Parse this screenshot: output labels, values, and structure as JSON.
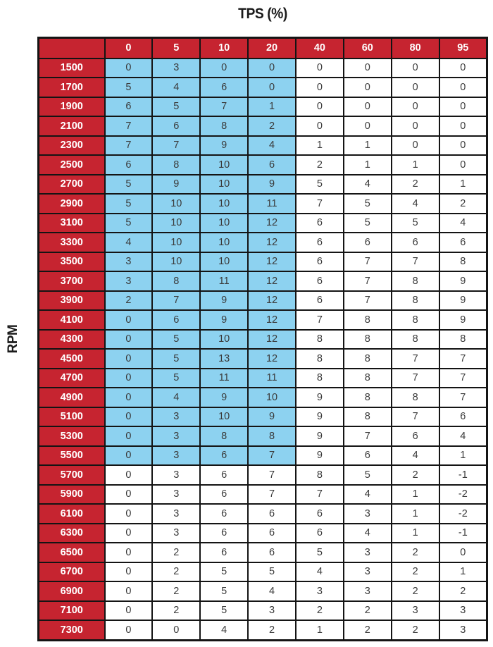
{
  "title": "TPS (%)",
  "y_axis_label": "RPM",
  "colors": {
    "header_red": "#C62430",
    "highlight_blue": "#8DD2F0",
    "grid_black": "#141414",
    "header_text": "#FFFFFF",
    "cell_text": "#3B3B3B"
  },
  "chart_data": {
    "type": "table",
    "title": "TPS (%)",
    "col_axis_label": "TPS (%)",
    "row_axis_label": "RPM",
    "columns": [
      "0",
      "5",
      "10",
      "20",
      "40",
      "60",
      "80",
      "95"
    ],
    "rows": [
      {
        "rpm": "1500",
        "values": [
          0,
          3,
          0,
          0,
          0,
          0,
          0,
          0
        ]
      },
      {
        "rpm": "1700",
        "values": [
          5,
          4,
          6,
          0,
          0,
          0,
          0,
          0
        ]
      },
      {
        "rpm": "1900",
        "values": [
          6,
          5,
          7,
          1,
          0,
          0,
          0,
          0
        ]
      },
      {
        "rpm": "2100",
        "values": [
          7,
          6,
          8,
          2,
          0,
          0,
          0,
          0
        ]
      },
      {
        "rpm": "2300",
        "values": [
          7,
          7,
          9,
          4,
          1,
          1,
          0,
          0
        ]
      },
      {
        "rpm": "2500",
        "values": [
          6,
          8,
          10,
          6,
          2,
          1,
          1,
          0
        ]
      },
      {
        "rpm": "2700",
        "values": [
          5,
          9,
          10,
          9,
          5,
          4,
          2,
          1
        ]
      },
      {
        "rpm": "2900",
        "values": [
          5,
          10,
          10,
          11,
          7,
          5,
          4,
          2
        ]
      },
      {
        "rpm": "3100",
        "values": [
          5,
          10,
          10,
          12,
          6,
          5,
          5,
          4
        ]
      },
      {
        "rpm": "3300",
        "values": [
          4,
          10,
          10,
          12,
          6,
          6,
          6,
          6
        ]
      },
      {
        "rpm": "3500",
        "values": [
          3,
          10,
          10,
          12,
          6,
          7,
          7,
          8
        ]
      },
      {
        "rpm": "3700",
        "values": [
          3,
          8,
          11,
          12,
          6,
          7,
          8,
          9
        ]
      },
      {
        "rpm": "3900",
        "values": [
          2,
          7,
          9,
          12,
          6,
          7,
          8,
          9
        ]
      },
      {
        "rpm": "4100",
        "values": [
          0,
          6,
          9,
          12,
          7,
          8,
          8,
          9
        ]
      },
      {
        "rpm": "4300",
        "values": [
          0,
          5,
          10,
          12,
          8,
          8,
          8,
          8
        ]
      },
      {
        "rpm": "4500",
        "values": [
          0,
          5,
          13,
          12,
          8,
          8,
          7,
          7
        ]
      },
      {
        "rpm": "4700",
        "values": [
          0,
          5,
          11,
          11,
          8,
          8,
          7,
          7
        ]
      },
      {
        "rpm": "4900",
        "values": [
          0,
          4,
          9,
          10,
          9,
          8,
          8,
          7
        ]
      },
      {
        "rpm": "5100",
        "values": [
          0,
          3,
          10,
          9,
          9,
          8,
          7,
          6
        ]
      },
      {
        "rpm": "5300",
        "values": [
          0,
          3,
          8,
          8,
          9,
          7,
          6,
          4
        ]
      },
      {
        "rpm": "5500",
        "values": [
          0,
          3,
          6,
          7,
          9,
          6,
          4,
          1
        ]
      },
      {
        "rpm": "5700",
        "values": [
          0,
          3,
          6,
          7,
          8,
          5,
          2,
          -1
        ]
      },
      {
        "rpm": "5900",
        "values": [
          0,
          3,
          6,
          7,
          7,
          4,
          1,
          -2
        ]
      },
      {
        "rpm": "6100",
        "values": [
          0,
          3,
          6,
          6,
          6,
          3,
          1,
          -2
        ]
      },
      {
        "rpm": "6300",
        "values": [
          0,
          3,
          6,
          6,
          6,
          4,
          1,
          -1
        ]
      },
      {
        "rpm": "6500",
        "values": [
          0,
          2,
          6,
          6,
          5,
          3,
          2,
          0
        ]
      },
      {
        "rpm": "6700",
        "values": [
          0,
          2,
          5,
          5,
          4,
          3,
          2,
          1
        ]
      },
      {
        "rpm": "6900",
        "values": [
          0,
          2,
          5,
          4,
          3,
          3,
          2,
          2
        ]
      },
      {
        "rpm": "7100",
        "values": [
          0,
          2,
          5,
          3,
          2,
          2,
          3,
          3
        ]
      },
      {
        "rpm": "7300",
        "values": [
          0,
          0,
          4,
          2,
          1,
          2,
          2,
          3
        ]
      }
    ],
    "highlighted_region": {
      "color": "#8DD2F0",
      "rpm_from": "1500",
      "rpm_to": "5500",
      "columns": [
        "0",
        "5",
        "10",
        "20"
      ]
    },
    "legend": "none",
    "grid": true
  }
}
